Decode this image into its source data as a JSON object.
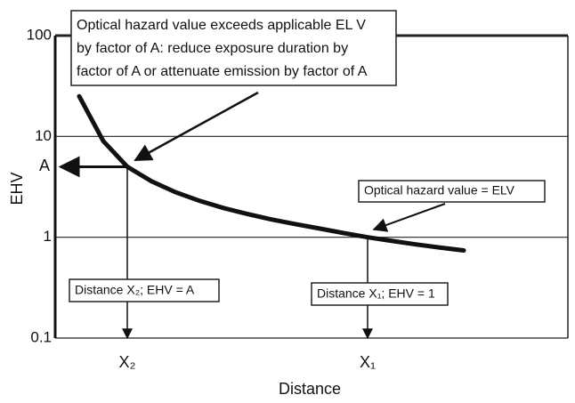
{
  "chart_data": {
    "type": "line",
    "ylabel": "EHV",
    "xlabel": "Distance",
    "log_y": true,
    "ylim": [
      0.1,
      100
    ],
    "yticks": [
      0.1,
      1,
      10,
      100
    ],
    "grid": true,
    "categories": [
      null,
      null,
      null,
      "X₂",
      null,
      null,
      null,
      null,
      null,
      null,
      null,
      null,
      null,
      "X₁",
      null,
      null,
      null,
      null,
      null,
      null,
      null,
      null
    ],
    "series": [
      {
        "color": "#111111",
        "values": [
          null,
          25,
          9,
          5,
          3.6,
          2.8,
          2.3,
          1.95,
          1.7,
          1.5,
          1.35,
          1.22,
          1.1,
          1.0,
          0.92,
          0.85,
          0.79,
          0.74,
          null,
          null,
          null,
          null
        ]
      }
    ],
    "reference": {
      "value": 5,
      "label": "A"
    },
    "annotations": [
      {
        "lines": [
          "Optical hazard value exceeds applicable EL V",
          "by factor of A: reduce exposure duration by",
          "factor of A or attenuate emission by factor of A"
        ]
      },
      {
        "lines": [
          "Optical hazard value = ELV"
        ]
      },
      {
        "lines": [
          "Distance X₂; EHV = A"
        ]
      },
      {
        "lines": [
          "Distance X₁; EHV = 1"
        ]
      }
    ]
  }
}
